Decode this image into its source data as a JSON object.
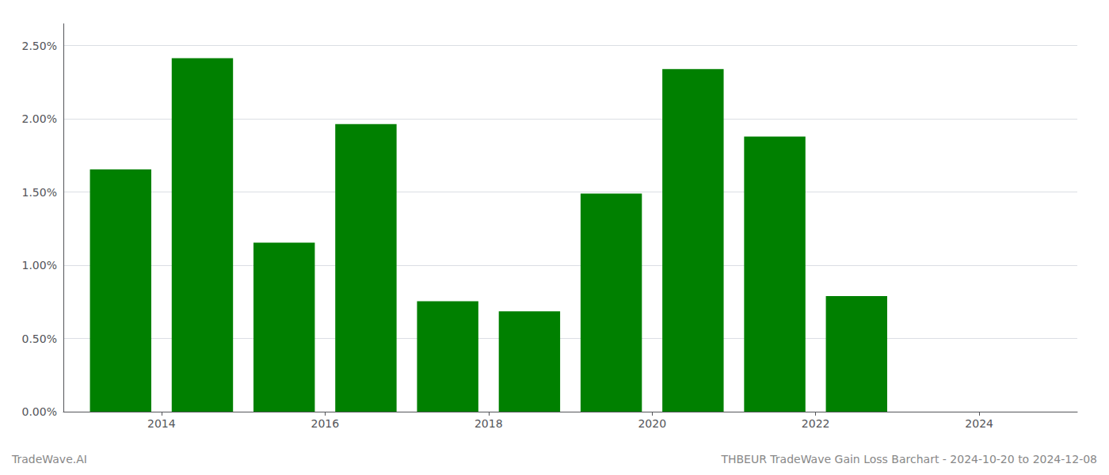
{
  "chart_data": {
    "type": "bar",
    "title": "THBEUR TradeWave Gain Loss Barchart - 2024-10-20 to 2024-12-08",
    "annotations": [
      "TradeWave.AI"
    ],
    "x": [
      2013.5,
      2014.5,
      2015.5,
      2016.5,
      2017.5,
      2018.5,
      2019.5,
      2020.5,
      2021.5,
      2022.5
    ],
    "values": [
      0.01655,
      0.02415,
      0.01155,
      0.01965,
      0.00755,
      0.00685,
      0.0149,
      0.0234,
      0.0188,
      0.0079
    ],
    "color": "#008000",
    "xlim": [
      2012.8,
      2025.2
    ],
    "xticks": [
      2014,
      2016,
      2018,
      2020,
      2022,
      2024
    ],
    "ylim": [
      0.0,
      0.0265
    ],
    "yticks": [
      {
        "value": 0.0,
        "label": "0.00%"
      },
      {
        "value": 0.005,
        "label": "0.50%"
      },
      {
        "value": 0.01,
        "label": "1.00%"
      },
      {
        "value": 0.015,
        "label": "1.50%"
      },
      {
        "value": 0.02,
        "label": "2.00%"
      },
      {
        "value": 0.025,
        "label": "2.50%"
      }
    ],
    "grid": true
  }
}
